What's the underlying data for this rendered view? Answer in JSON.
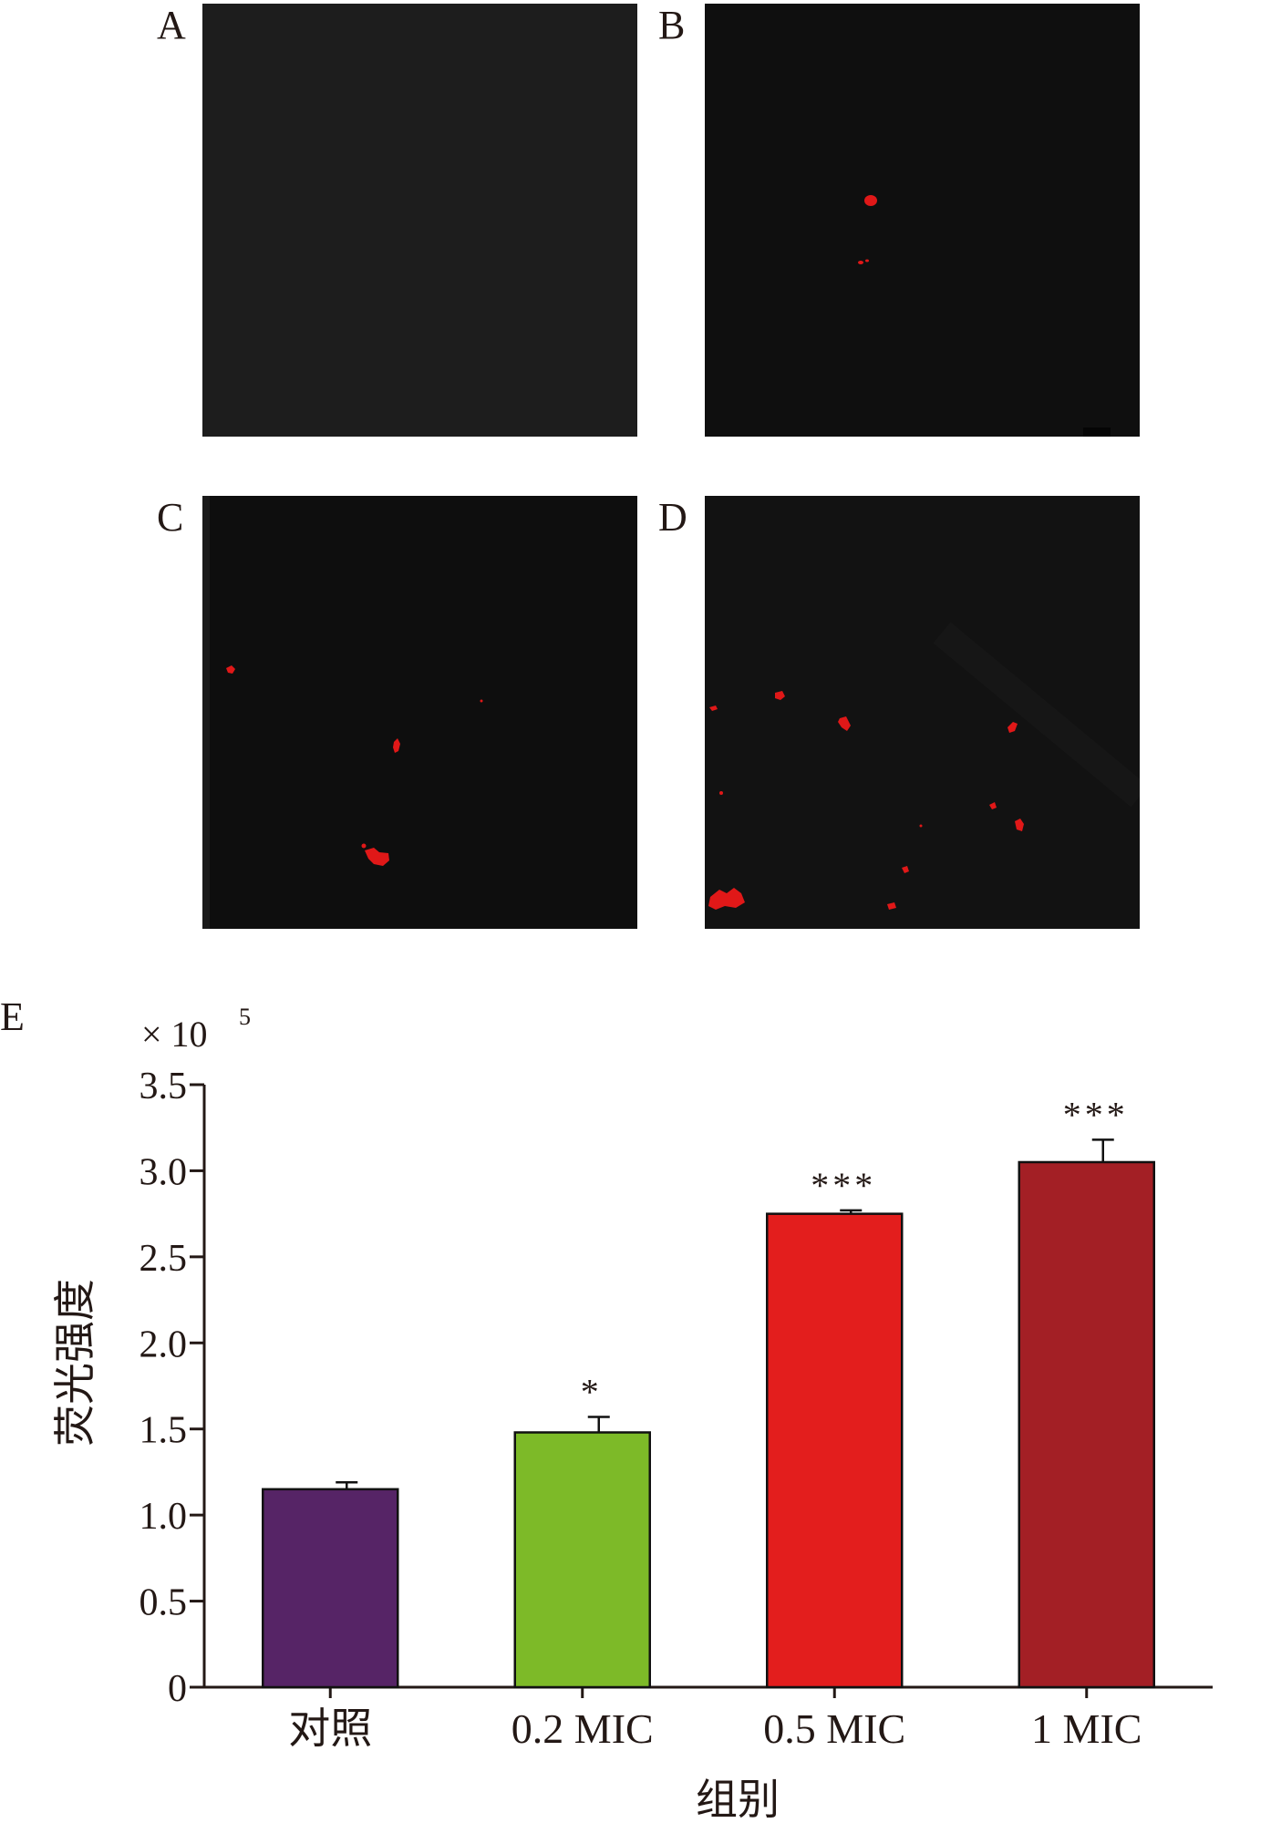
{
  "panels": [
    {
      "label": "A",
      "bg": "#1c1c1c"
    },
    {
      "label": "B",
      "bg": "#0f0f0f"
    },
    {
      "label": "C",
      "bg": "#0e0e0e"
    },
    {
      "label": "D",
      "bg": "#121212"
    }
  ],
  "chart_panel_label": "E",
  "chart_data": {
    "type": "bar",
    "categories": [
      "对照",
      "0.2 MIC",
      "0.5 MIC",
      "1 MIC"
    ],
    "values": [
      1.15,
      1.48,
      2.75,
      3.05
    ],
    "errors": [
      0.04,
      0.09,
      0.02,
      0.13
    ],
    "significance": [
      "",
      "*",
      "***",
      "***"
    ],
    "colors": [
      "#562466",
      "#7dba28",
      "#e31e1d",
      "#a31f25"
    ],
    "title": "",
    "xlabel": "组别",
    "ylabel": "荧光强度",
    "y_multiplier": "× 10",
    "y_multiplier_exp": "5",
    "ylim": [
      0,
      3.5
    ],
    "yticks": [
      "0",
      "0.5",
      "1.0",
      "1.5",
      "2.0",
      "2.5",
      "3.0",
      "3.5"
    ],
    "legend": "none",
    "grid": false
  },
  "colors": {
    "fluorescence": "#e01818",
    "axis": "#231815"
  }
}
